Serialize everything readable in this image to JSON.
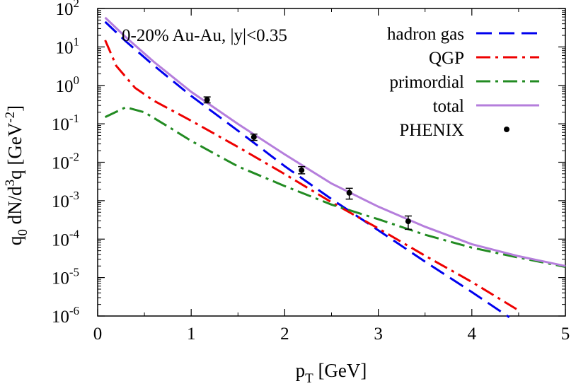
{
  "chart_data": {
    "type": "line",
    "title": "",
    "annotation": "0-20% Au-Au, |y|<0.35",
    "xlabel": {
      "base": "p",
      "sub": "T",
      "rest": " [GeV]"
    },
    "ylabel": {
      "parts": [
        "q",
        "0",
        " dN/d",
        "3",
        "q [GeV",
        "-2",
        "]"
      ]
    },
    "xlim": [
      0,
      5
    ],
    "ylim_log10": [
      -6,
      2
    ],
    "y_scale": "log",
    "x_ticks": [
      "0",
      "1",
      "2",
      "3",
      "4",
      "5"
    ],
    "y_ticks": [
      {
        "base": "10",
        "exp": "-6"
      },
      {
        "base": "10",
        "exp": "-5"
      },
      {
        "base": "10",
        "exp": "-4"
      },
      {
        "base": "10",
        "exp": "-3"
      },
      {
        "base": "10",
        "exp": "-2"
      },
      {
        "base": "10",
        "exp": "-1"
      },
      {
        "base": "10",
        "exp": "0"
      },
      {
        "base": "10",
        "exp": "1"
      },
      {
        "base": "10",
        "exp": "2"
      }
    ],
    "legend_position": "top-right",
    "series": [
      {
        "name": "hadron gas",
        "color": "#0000ee",
        "dash": "long-dash",
        "x": [
          0.08,
          0.3,
          0.6,
          1.0,
          1.5,
          2.0,
          2.5,
          3.0,
          3.5,
          4.0,
          4.4
        ],
        "y": [
          45,
          14,
          3.3,
          0.53,
          0.066,
          0.0079,
          0.0011,
          0.00017,
          2.6e-05,
          4.2e-06,
          9.3e-07
        ]
      },
      {
        "name": "QGP",
        "color": "#ee0000",
        "dash": "dash-dot",
        "x": [
          0.08,
          0.2,
          0.4,
          0.6,
          1.0,
          1.5,
          2.0,
          2.5,
          3.0,
          3.5,
          4.0,
          4.5
        ],
        "y": [
          15,
          3.2,
          0.86,
          0.4,
          0.12,
          0.025,
          0.0049,
          0.00091,
          0.00019,
          3.7e-05,
          7.7e-06,
          1.4e-06
        ]
      },
      {
        "name": "primordial",
        "color": "#228b22",
        "dash": "dash-dot",
        "x": [
          0.08,
          0.3,
          0.5,
          0.8,
          1.0,
          1.5,
          2.0,
          2.5,
          3.0,
          3.5,
          4.0,
          4.5,
          5.0
        ],
        "y": [
          0.15,
          0.27,
          0.2,
          0.072,
          0.036,
          0.0078,
          0.0024,
          0.00079,
          0.00033,
          0.00013,
          6e-05,
          3.3e-05,
          1.9e-05
        ]
      },
      {
        "name": "total",
        "color": "#b57edc",
        "dash": "solid",
        "x": [
          0.08,
          0.3,
          0.6,
          1.0,
          1.5,
          2.0,
          2.5,
          3.0,
          3.5,
          4.0,
          4.5,
          5.0
        ],
        "y": [
          58,
          18,
          4.1,
          0.68,
          0.099,
          0.016,
          0.0028,
          0.0007,
          0.00021,
          7.4e-05,
          3.6e-05,
          2e-05
        ]
      }
    ],
    "points": {
      "name": "PHENIX",
      "color": "#000000",
      "x": [
        1.17,
        1.67,
        2.18,
        2.69,
        3.32
      ],
      "y": [
        0.42,
        0.045,
        0.0062,
        0.0016,
        0.00029
      ],
      "y_err_low": [
        0.35,
        0.037,
        0.005,
        0.0011,
        0.00018
      ],
      "y_err_high": [
        0.5,
        0.054,
        0.0077,
        0.0021,
        0.0004
      ]
    }
  }
}
